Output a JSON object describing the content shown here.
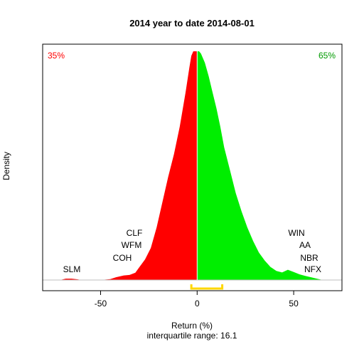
{
  "chart_data": {
    "type": "area",
    "title": "2014  year to date 2014-08-01",
    "xlabel": "Return (%)",
    "ylabel": "Density",
    "subtitle": "interquartile range: 16.1",
    "xlim": [
      -80,
      75
    ],
    "ylim": [
      0,
      1
    ],
    "x_ticks": [
      -50,
      0,
      50
    ],
    "x_tick_labels": [
      "-50",
      "0",
      "50"
    ],
    "split_at": 0,
    "left_share": "35%",
    "right_share": "65%",
    "iqr_interval": [
      -3,
      13
    ],
    "x": [
      -71,
      -68,
      -65,
      -62,
      -60,
      -50,
      -45,
      -42,
      -38,
      -35,
      -32,
      -30,
      -27,
      -24,
      -21,
      -18,
      -15,
      -12,
      -9,
      -6,
      -4,
      -3,
      -2,
      -1,
      0,
      1,
      2,
      4,
      6,
      8,
      10,
      12,
      14,
      17,
      20,
      23,
      26,
      29,
      32,
      35,
      38,
      41,
      44,
      47,
      50,
      53,
      56,
      59,
      62,
      65
    ],
    "y": [
      0,
      0.006,
      0.006,
      0.003,
      0,
      0,
      0.004,
      0.012,
      0.02,
      0.022,
      0.032,
      0.055,
      0.09,
      0.14,
      0.23,
      0.34,
      0.45,
      0.55,
      0.67,
      0.82,
      0.93,
      0.98,
      1.0,
      1.0,
      1.0,
      1.0,
      0.99,
      0.95,
      0.89,
      0.82,
      0.75,
      0.67,
      0.58,
      0.48,
      0.38,
      0.3,
      0.23,
      0.17,
      0.12,
      0.085,
      0.057,
      0.04,
      0.033,
      0.045,
      0.035,
      0.025,
      0.018,
      0.012,
      0.006,
      0
    ],
    "colors": {
      "negative": "#ff0000",
      "positive": "#00ee00",
      "iqr": "#ffd700",
      "baseline": "#bebebe",
      "divider": "#ffffff"
    },
    "labels": {
      "left": [
        "SLM",
        "COH",
        "WFM",
        "CLF"
      ],
      "right": [
        "NFX",
        "NBR",
        "AA",
        "WIN"
      ]
    }
  }
}
